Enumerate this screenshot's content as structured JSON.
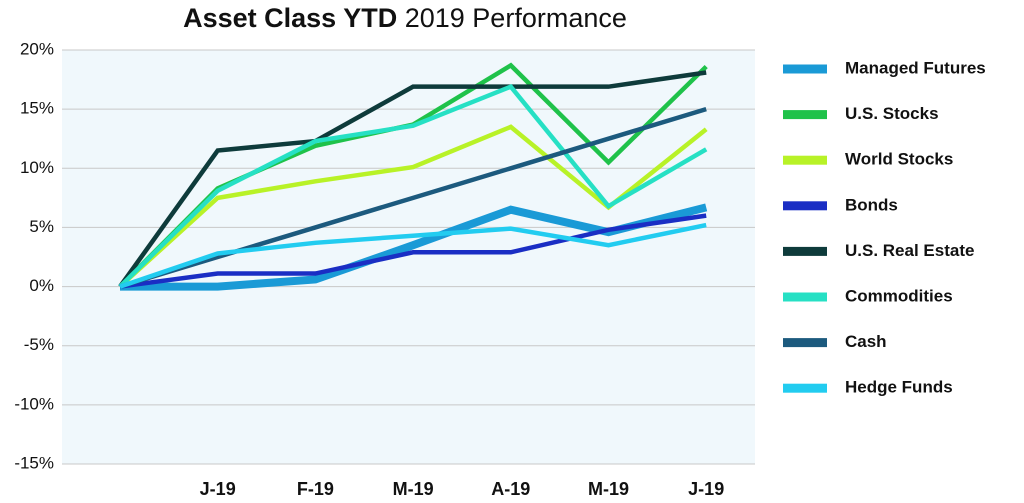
{
  "chart_data": {
    "type": "line",
    "title": "Asset Class YTD",
    "subtitle": "2019 Performance",
    "categories": [
      null,
      "J-19",
      "F-19",
      "M-19",
      "A-19",
      "M-19",
      "J-19"
    ],
    "ylim": [
      -15,
      20
    ],
    "yticks": [
      {
        "value": -15,
        "label": "-15%"
      },
      {
        "value": -10,
        "label": "-10%"
      },
      {
        "value": -5,
        "label": "-5%"
      },
      {
        "value": 0,
        "label": "0%"
      },
      {
        "value": 5,
        "label": "5%"
      },
      {
        "value": 10,
        "label": "10%"
      },
      {
        "value": 15,
        "label": "15%"
      },
      {
        "value": 20,
        "label": "20%"
      }
    ],
    "grid": true,
    "legend": "right",
    "series": [
      {
        "name": "Managed Futures",
        "color": "#1a9ad6",
        "values": [
          0,
          0,
          0.6,
          3.5,
          6.5,
          4.6,
          6.7
        ]
      },
      {
        "name": "U.S. Stocks",
        "color": "#1fc24a",
        "values": [
          0,
          8.3,
          11.9,
          13.7,
          18.7,
          10.5,
          18.6
        ]
      },
      {
        "name": "World Stocks",
        "color": "#b8f227",
        "values": [
          0,
          7.5,
          8.9,
          10.1,
          13.5,
          6.7,
          13.3
        ]
      },
      {
        "name": "Bonds",
        "color": "#1a2ec4",
        "values": [
          0,
          1.1,
          1.1,
          2.9,
          2.9,
          4.8,
          6.0
        ]
      },
      {
        "name": "U.S. Real Estate",
        "color": "#0e3b3b",
        "values": [
          0,
          11.5,
          12.3,
          16.9,
          16.9,
          16.9,
          18.1
        ]
      },
      {
        "name": "Commodities",
        "color": "#26e0c4",
        "values": [
          0,
          8.1,
          12.3,
          13.6,
          16.9,
          6.8,
          11.6
        ]
      },
      {
        "name": "Cash",
        "color": "#1c5a7e",
        "values": [
          0,
          2.5,
          5,
          7.5,
          10,
          12.5,
          15
        ]
      },
      {
        "name": "Hedge Funds",
        "color": "#22ccf0",
        "values": [
          0,
          2.8,
          3.7,
          4.3,
          4.9,
          3.5,
          5.2
        ]
      }
    ]
  }
}
